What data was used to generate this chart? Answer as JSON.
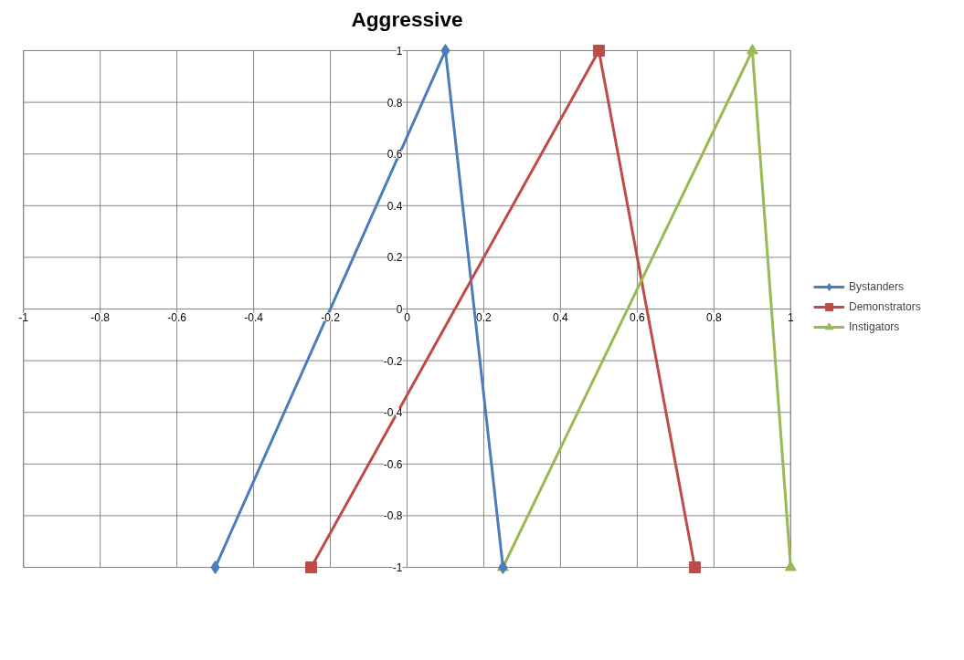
{
  "chart_data": {
    "type": "line",
    "title": "Aggressive",
    "xlim": [
      -1,
      1
    ],
    "ylim": [
      -1,
      1
    ],
    "xticks": [
      -1,
      -0.8,
      -0.6,
      -0.4,
      -0.2,
      0,
      0.2,
      0.4,
      0.6,
      0.8,
      1
    ],
    "yticks": [
      -1,
      -0.8,
      -0.6,
      -0.4,
      -0.2,
      0,
      0.2,
      0.4,
      0.6,
      0.8,
      1
    ],
    "grid": true,
    "legend": "right",
    "series": [
      {
        "name": "Bystanders",
        "color": "#4a7ebb",
        "marker": "diamond",
        "x": [
          -0.5,
          0.1,
          0.25
        ],
        "values": [
          -1,
          1,
          -1
        ]
      },
      {
        "name": "Demonstrators",
        "color": "#be4b48",
        "marker": "square",
        "x": [
          -0.25,
          0.5,
          0.75
        ],
        "values": [
          -1,
          1,
          -1
        ]
      },
      {
        "name": "Instigators",
        "color": "#98b954",
        "marker": "triangle",
        "x": [
          0.25,
          0.9,
          1
        ],
        "values": [
          -1,
          1,
          -1
        ]
      }
    ]
  }
}
